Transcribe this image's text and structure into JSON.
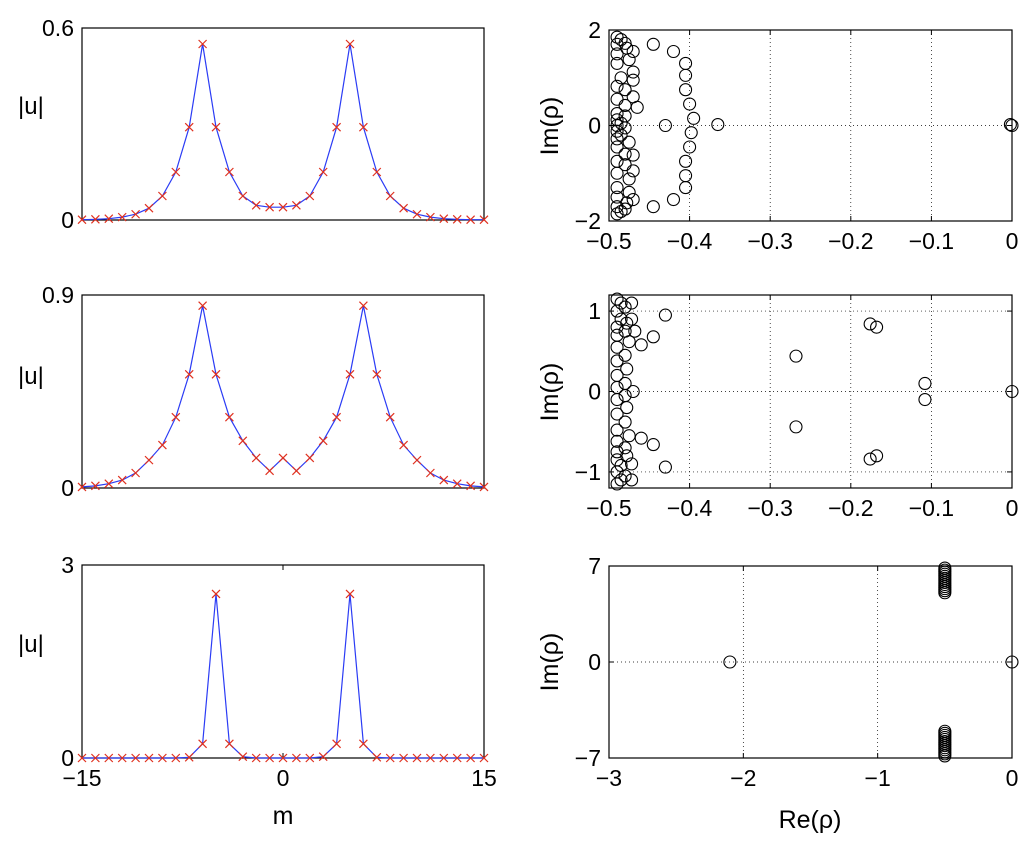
{
  "chart_data": [
    {
      "id": "left-top",
      "type": "line",
      "xlabel": "",
      "ylabel": "|u|",
      "xlim": [
        -15,
        15
      ],
      "ylim": [
        0,
        0.6
      ],
      "ytick_labels": [
        "0",
        "0.6"
      ],
      "xtick_labels": [],
      "grid": false,
      "series": [
        {
          "name": "|u|",
          "x": [
            -15,
            -14,
            -13,
            -12,
            -11,
            -10,
            -9,
            -8,
            -7,
            -6,
            -5,
            -4,
            -3,
            -2,
            -1,
            0,
            1,
            2,
            3,
            4,
            5,
            6,
            7,
            8,
            9,
            10,
            11,
            12,
            13,
            14,
            15
          ],
          "values": [
            0.001,
            0.002,
            0.004,
            0.009,
            0.018,
            0.037,
            0.075,
            0.15,
            0.29,
            0.55,
            0.29,
            0.15,
            0.075,
            0.046,
            0.04,
            0.04,
            0.046,
            0.075,
            0.15,
            0.29,
            0.55,
            0.29,
            0.15,
            0.075,
            0.037,
            0.018,
            0.009,
            0.004,
            0.002,
            0.001,
            0.001
          ]
        }
      ]
    },
    {
      "id": "left-middle",
      "type": "line",
      "xlabel": "",
      "ylabel": "|u|",
      "xlim": [
        -15,
        15
      ],
      "ylim": [
        0,
        0.9
      ],
      "ytick_labels": [
        "0",
        "0.9"
      ],
      "xtick_labels": [],
      "grid": false,
      "series": [
        {
          "name": "|u|",
          "x": [
            -15,
            -14,
            -13,
            -12,
            -11,
            -10,
            -9,
            -8,
            -7,
            -6,
            -5,
            -4,
            -3,
            -2,
            -1,
            0,
            1,
            2,
            3,
            4,
            5,
            6,
            7,
            8,
            9,
            10,
            11,
            12,
            13,
            14,
            15
          ],
          "values": [
            0.005,
            0.01,
            0.02,
            0.037,
            0.07,
            0.13,
            0.2,
            0.33,
            0.53,
            0.85,
            0.53,
            0.33,
            0.22,
            0.14,
            0.08,
            0.14,
            0.08,
            0.14,
            0.22,
            0.33,
            0.53,
            0.85,
            0.53,
            0.33,
            0.2,
            0.13,
            0.07,
            0.037,
            0.02,
            0.01,
            0.005
          ]
        }
      ]
    },
    {
      "id": "left-bottom",
      "type": "line",
      "xlabel": "m",
      "ylabel": "|u|",
      "xlim": [
        -15,
        15
      ],
      "ylim": [
        0,
        3
      ],
      "ytick_labels": [
        "0",
        "3"
      ],
      "xtick_labels": [
        "−15",
        "0",
        "15"
      ],
      "xtick_values": [
        -15,
        0,
        15
      ],
      "grid": false,
      "series": [
        {
          "name": "|u|",
          "x": [
            -15,
            -14,
            -13,
            -12,
            -11,
            -10,
            -9,
            -8,
            -7,
            -6,
            -5,
            -4,
            -3,
            -2,
            -1,
            0,
            1,
            2,
            3,
            4,
            5,
            6,
            7,
            8,
            9,
            10,
            11,
            12,
            13,
            14,
            15
          ],
          "values": [
            0,
            0,
            0,
            0,
            0,
            0,
            0,
            0,
            0.01,
            0.22,
            2.55,
            0.22,
            0.02,
            0,
            0,
            0,
            0,
            0,
            0.02,
            0.22,
            2.55,
            0.22,
            0.01,
            0,
            0,
            0,
            0,
            0,
            0,
            0,
            0
          ]
        }
      ]
    },
    {
      "id": "right-top",
      "type": "scatter",
      "xlabel": "",
      "ylabel": "Im(ρ)",
      "xlim": [
        -0.5,
        0
      ],
      "ylim": [
        -2,
        2
      ],
      "ytick_values": [
        -2,
        0,
        2
      ],
      "ytick_labels": [
        "−2",
        "0",
        "2"
      ],
      "xtick_values": [
        -0.5,
        -0.4,
        -0.3,
        -0.2,
        -0.1,
        0
      ],
      "xtick_labels": [
        "−0.5",
        "−0.4",
        "−0.3",
        "−0.2",
        "−0.1",
        "0"
      ],
      "grid": true,
      "points": [
        [
          -0.49,
          1.85
        ],
        [
          -0.485,
          1.8
        ],
        [
          -0.49,
          1.7
        ],
        [
          -0.48,
          1.72
        ],
        [
          -0.478,
          1.62
        ],
        [
          -0.47,
          1.55
        ],
        [
          -0.49,
          1.5
        ],
        [
          -0.475,
          1.38
        ],
        [
          -0.49,
          1.3
        ],
        [
          -0.47,
          1.12
        ],
        [
          -0.485,
          1.0
        ],
        [
          -0.47,
          0.95
        ],
        [
          -0.49,
          0.82
        ],
        [
          -0.48,
          0.75
        ],
        [
          -0.47,
          0.6
        ],
        [
          -0.49,
          0.55
        ],
        [
          -0.48,
          0.42
        ],
        [
          -0.465,
          0.38
        ],
        [
          -0.49,
          0.25
        ],
        [
          -0.48,
          0.2
        ],
        [
          -0.49,
          0.12
        ],
        [
          -0.485,
          0.05
        ],
        [
          -0.49,
          0.0
        ],
        [
          -0.48,
          -0.05
        ],
        [
          -0.49,
          -0.12
        ],
        [
          -0.485,
          -0.2
        ],
        [
          -0.49,
          -0.28
        ],
        [
          -0.475,
          -0.35
        ],
        [
          -0.49,
          -0.45
        ],
        [
          -0.48,
          -0.6
        ],
        [
          -0.47,
          -0.62
        ],
        [
          -0.49,
          -0.75
        ],
        [
          -0.48,
          -0.82
        ],
        [
          -0.47,
          -0.95
        ],
        [
          -0.49,
          -1.0
        ],
        [
          -0.475,
          -1.12
        ],
        [
          -0.49,
          -1.3
        ],
        [
          -0.475,
          -1.4
        ],
        [
          -0.49,
          -1.5
        ],
        [
          -0.47,
          -1.55
        ],
        [
          -0.478,
          -1.62
        ],
        [
          -0.49,
          -1.7
        ],
        [
          -0.48,
          -1.75
        ],
        [
          -0.485,
          -1.8
        ],
        [
          -0.49,
          -1.85
        ],
        [
          -0.445,
          1.7
        ],
        [
          -0.42,
          1.55
        ],
        [
          -0.405,
          1.3
        ],
        [
          -0.405,
          1.05
        ],
        [
          -0.405,
          0.75
        ],
        [
          -0.4,
          0.45
        ],
        [
          -0.395,
          0.15
        ],
        [
          -0.398,
          -0.15
        ],
        [
          -0.4,
          -0.45
        ],
        [
          -0.405,
          -0.75
        ],
        [
          -0.405,
          -1.05
        ],
        [
          -0.405,
          -1.3
        ],
        [
          -0.42,
          -1.55
        ],
        [
          -0.445,
          -1.7
        ],
        [
          -0.43,
          0.0
        ],
        [
          -0.365,
          0.02
        ],
        [
          -0.002,
          0.02
        ],
        [
          0.0,
          0.0
        ]
      ]
    },
    {
      "id": "right-middle",
      "type": "scatter",
      "xlabel": "",
      "ylabel": "Im(ρ)",
      "xlim": [
        -0.5,
        0
      ],
      "ylim": [
        -1.2,
        1.2
      ],
      "ytick_values": [
        -1,
        0,
        1
      ],
      "ytick_labels": [
        "−1",
        "0",
        "1"
      ],
      "xtick_values": [
        -0.5,
        -0.4,
        -0.3,
        -0.2,
        -0.1,
        0
      ],
      "xtick_labels": [
        "−0.5",
        "−0.4",
        "−0.3",
        "−0.2",
        "−0.1",
        "0"
      ],
      "grid": true,
      "points": [
        [
          -0.49,
          1.15
        ],
        [
          -0.485,
          1.1
        ],
        [
          -0.48,
          1.05
        ],
        [
          -0.49,
          1.0
        ],
        [
          -0.485,
          0.9
        ],
        [
          -0.478,
          0.85
        ],
        [
          -0.49,
          0.8
        ],
        [
          -0.48,
          0.75
        ],
        [
          -0.49,
          0.7
        ],
        [
          -0.475,
          0.62
        ],
        [
          -0.49,
          0.55
        ],
        [
          -0.48,
          0.45
        ],
        [
          -0.49,
          0.38
        ],
        [
          -0.478,
          0.28
        ],
        [
          -0.49,
          0.2
        ],
        [
          -0.48,
          0.1
        ],
        [
          -0.49,
          0.05
        ],
        [
          -0.48,
          -0.05
        ],
        [
          -0.49,
          -0.1
        ],
        [
          -0.478,
          -0.2
        ],
        [
          -0.49,
          -0.28
        ],
        [
          -0.48,
          -0.38
        ],
        [
          -0.49,
          -0.48
        ],
        [
          -0.475,
          -0.55
        ],
        [
          -0.49,
          -0.62
        ],
        [
          -0.48,
          -0.7
        ],
        [
          -0.49,
          -0.75
        ],
        [
          -0.478,
          -0.8
        ],
        [
          -0.49,
          -0.85
        ],
        [
          -0.485,
          -0.92
        ],
        [
          -0.49,
          -1.0
        ],
        [
          -0.48,
          -1.05
        ],
        [
          -0.485,
          -1.1
        ],
        [
          -0.49,
          -1.15
        ],
        [
          -0.472,
          1.1
        ],
        [
          -0.472,
          0.9
        ],
        [
          -0.468,
          0.75
        ],
        [
          -0.47,
          0.0
        ],
        [
          -0.472,
          -0.9
        ],
        [
          -0.472,
          -1.1
        ],
        [
          -0.43,
          0.95
        ],
        [
          -0.445,
          0.68
        ],
        [
          -0.46,
          0.58
        ],
        [
          -0.46,
          -0.58
        ],
        [
          -0.445,
          -0.66
        ],
        [
          -0.43,
          -0.94
        ],
        [
          -0.268,
          0.44
        ],
        [
          -0.268,
          -0.44
        ],
        [
          -0.176,
          0.84
        ],
        [
          -0.168,
          0.8
        ],
        [
          -0.176,
          -0.84
        ],
        [
          -0.168,
          -0.8
        ],
        [
          -0.108,
          0.1
        ],
        [
          -0.108,
          -0.1
        ],
        [
          0.0,
          0.0
        ]
      ]
    },
    {
      "id": "right-bottom",
      "type": "scatter",
      "xlabel": "Re(ρ)",
      "ylabel": "Im(ρ)",
      "xlim": [
        -3,
        0
      ],
      "ylim": [
        -7,
        7
      ],
      "ytick_values": [
        -7,
        0,
        7
      ],
      "ytick_labels": [
        "−7",
        "0",
        "7"
      ],
      "xtick_values": [
        -3,
        -2,
        -1,
        0
      ],
      "xtick_labels": [
        "−3",
        "−2",
        "−1",
        "0"
      ],
      "grid": true,
      "points": [
        [
          -0.5,
          6.85
        ],
        [
          -0.5,
          6.7
        ],
        [
          -0.5,
          6.55
        ],
        [
          -0.5,
          6.4
        ],
        [
          -0.5,
          6.25
        ],
        [
          -0.5,
          6.1
        ],
        [
          -0.5,
          5.95
        ],
        [
          -0.5,
          5.8
        ],
        [
          -0.5,
          5.65
        ],
        [
          -0.5,
          5.5
        ],
        [
          -0.5,
          5.35
        ],
        [
          -0.5,
          5.2
        ],
        [
          -0.5,
          5.05
        ],
        [
          -0.5,
          -5.05
        ],
        [
          -0.5,
          -5.2
        ],
        [
          -0.5,
          -5.35
        ],
        [
          -0.5,
          -5.5
        ],
        [
          -0.5,
          -5.65
        ],
        [
          -0.5,
          -5.8
        ],
        [
          -0.5,
          -5.95
        ],
        [
          -0.5,
          -6.1
        ],
        [
          -0.5,
          -6.25
        ],
        [
          -0.5,
          -6.4
        ],
        [
          -0.5,
          -6.55
        ],
        [
          -0.5,
          -6.7
        ],
        [
          -0.5,
          -6.85
        ],
        [
          -2.1,
          0.0
        ],
        [
          0.0,
          0.0
        ]
      ]
    }
  ]
}
